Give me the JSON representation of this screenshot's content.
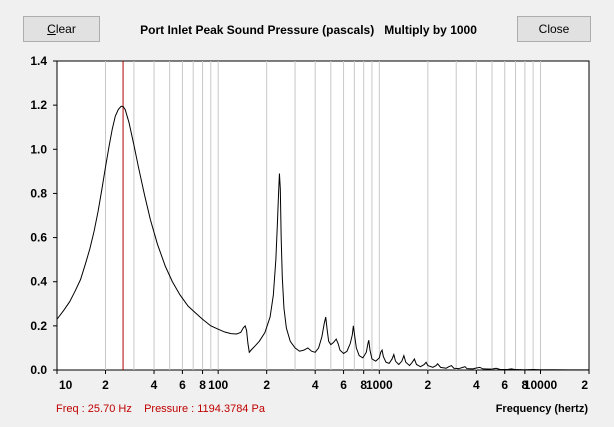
{
  "window": {
    "clear_label_first": "C",
    "clear_label_rest": "lear",
    "close_label": "Close",
    "title": "Port Inlet Peak Sound Pressure (pascals)   Multiply by 1000"
  },
  "readout": {
    "freq_text": "Freq : 25.70 Hz",
    "pressure_text": "Pressure : 1194.3784 Pa"
  },
  "colors": {
    "curve": "#000000",
    "cursor": "#b00000",
    "grid": "#c8c8c8",
    "readout": "#c00000"
  },
  "chart_data": {
    "type": "line",
    "title": "Port Inlet Peak Sound Pressure (pascals)   Multiply by 1000",
    "xlabel": "Frequency (hertz)",
    "ylabel": "",
    "x_scale": "log",
    "xlim": [
      10,
      20000
    ],
    "ylim": [
      0,
      1.4
    ],
    "grid": true,
    "y_ticks": [
      "0.0",
      "0.2",
      "0.4",
      "0.6",
      "0.8",
      "1.0",
      "1.2",
      "1.4"
    ],
    "x_ticks": [
      {
        "value": 10,
        "label": "10"
      },
      {
        "value": 20,
        "label": "2"
      },
      {
        "value": 40,
        "label": "4"
      },
      {
        "value": 60,
        "label": "6"
      },
      {
        "value": 80,
        "label": "8"
      },
      {
        "value": 100,
        "label": "100"
      },
      {
        "value": 200,
        "label": "2"
      },
      {
        "value": 400,
        "label": "4"
      },
      {
        "value": 600,
        "label": "6"
      },
      {
        "value": 800,
        "label": "8"
      },
      {
        "value": 1000,
        "label": "1000"
      },
      {
        "value": 2000,
        "label": "2"
      },
      {
        "value": 4000,
        "label": "4"
      },
      {
        "value": 6000,
        "label": "6"
      },
      {
        "value": 8000,
        "label": "8"
      },
      {
        "value": 10000,
        "label": "10000"
      },
      {
        "value": 20000,
        "label": "2"
      }
    ],
    "cursor_x": 25.7,
    "series": [
      {
        "points": [
          [
            10,
            0.23
          ],
          [
            11,
            0.27
          ],
          [
            12,
            0.31
          ],
          [
            13,
            0.36
          ],
          [
            14,
            0.41
          ],
          [
            15,
            0.48
          ],
          [
            16,
            0.55
          ],
          [
            17,
            0.63
          ],
          [
            18,
            0.72
          ],
          [
            19,
            0.82
          ],
          [
            20,
            0.92
          ],
          [
            21,
            1.01
          ],
          [
            22,
            1.09
          ],
          [
            23,
            1.15
          ],
          [
            24,
            1.18
          ],
          [
            25,
            1.195
          ],
          [
            25.7,
            1.194
          ],
          [
            26.5,
            1.18
          ],
          [
            28,
            1.12
          ],
          [
            30,
            1.02
          ],
          [
            32,
            0.92
          ],
          [
            35,
            0.79
          ],
          [
            38,
            0.68
          ],
          [
            42,
            0.57
          ],
          [
            47,
            0.47
          ],
          [
            52,
            0.4
          ],
          [
            58,
            0.34
          ],
          [
            65,
            0.29
          ],
          [
            72,
            0.26
          ],
          [
            80,
            0.23
          ],
          [
            90,
            0.2
          ],
          [
            100,
            0.185
          ],
          [
            110,
            0.172
          ],
          [
            120,
            0.165
          ],
          [
            130,
            0.163
          ],
          [
            138,
            0.17
          ],
          [
            143,
            0.19
          ],
          [
            147,
            0.2
          ],
          [
            150,
            0.18
          ],
          [
            153,
            0.12
          ],
          [
            156,
            0.08
          ],
          [
            160,
            0.09
          ],
          [
            170,
            0.11
          ],
          [
            180,
            0.13
          ],
          [
            195,
            0.17
          ],
          [
            210,
            0.24
          ],
          [
            220,
            0.34
          ],
          [
            228,
            0.5
          ],
          [
            233,
            0.66
          ],
          [
            237,
            0.8
          ],
          [
            240,
            0.89
          ],
          [
            243,
            0.82
          ],
          [
            246,
            0.6
          ],
          [
            250,
            0.42
          ],
          [
            256,
            0.28
          ],
          [
            265,
            0.19
          ],
          [
            280,
            0.13
          ],
          [
            300,
            0.1
          ],
          [
            320,
            0.085
          ],
          [
            340,
            0.09
          ],
          [
            360,
            0.1
          ],
          [
            380,
            0.085
          ],
          [
            400,
            0.08
          ],
          [
            420,
            0.1
          ],
          [
            440,
            0.15
          ],
          [
            455,
            0.21
          ],
          [
            465,
            0.24
          ],
          [
            475,
            0.18
          ],
          [
            485,
            0.13
          ],
          [
            500,
            0.115
          ],
          [
            520,
            0.125
          ],
          [
            540,
            0.14
          ],
          [
            555,
            0.12
          ],
          [
            570,
            0.09
          ],
          [
            600,
            0.075
          ],
          [
            630,
            0.085
          ],
          [
            660,
            0.12
          ],
          [
            680,
            0.16
          ],
          [
            690,
            0.2
          ],
          [
            700,
            0.165
          ],
          [
            720,
            0.1
          ],
          [
            750,
            0.065
          ],
          [
            790,
            0.055
          ],
          [
            830,
            0.08
          ],
          [
            850,
            0.12
          ],
          [
            860,
            0.135
          ],
          [
            875,
            0.09
          ],
          [
            900,
            0.05
          ],
          [
            950,
            0.04
          ],
          [
            1000,
            0.055
          ],
          [
            1020,
            0.08
          ],
          [
            1040,
            0.09
          ],
          [
            1060,
            0.06
          ],
          [
            1100,
            0.035
          ],
          [
            1150,
            0.03
          ],
          [
            1200,
            0.05
          ],
          [
            1230,
            0.07
          ],
          [
            1260,
            0.04
          ],
          [
            1320,
            0.025
          ],
          [
            1380,
            0.04
          ],
          [
            1420,
            0.065
          ],
          [
            1460,
            0.035
          ],
          [
            1540,
            0.02
          ],
          [
            1600,
            0.035
          ],
          [
            1650,
            0.05
          ],
          [
            1700,
            0.025
          ],
          [
            1800,
            0.015
          ],
          [
            1900,
            0.025
          ],
          [
            1950,
            0.035
          ],
          [
            2000,
            0.02
          ],
          [
            2150,
            0.012
          ],
          [
            2250,
            0.02
          ],
          [
            2300,
            0.028
          ],
          [
            2400,
            0.012
          ],
          [
            2600,
            0.008
          ],
          [
            2700,
            0.015
          ],
          [
            2800,
            0.02
          ],
          [
            2900,
            0.008
          ],
          [
            3100,
            0.006
          ],
          [
            3300,
            0.012
          ],
          [
            3400,
            0.015
          ],
          [
            3500,
            0.006
          ],
          [
            3800,
            0.005
          ],
          [
            4000,
            0.009
          ],
          [
            4200,
            0.012
          ],
          [
            4400,
            0.005
          ],
          [
            5000,
            0.004
          ],
          [
            5300,
            0.008
          ],
          [
            5600,
            0.003
          ],
          [
            6200,
            0.002
          ],
          [
            6600,
            0.005
          ],
          [
            7000,
            0.002
          ],
          [
            8000,
            0.001
          ],
          [
            9000,
            0.002
          ],
          [
            10000,
            0.001
          ],
          [
            12000,
            0.001
          ],
          [
            15000,
            0.0005
          ],
          [
            20000,
            0.0003
          ]
        ]
      }
    ]
  }
}
